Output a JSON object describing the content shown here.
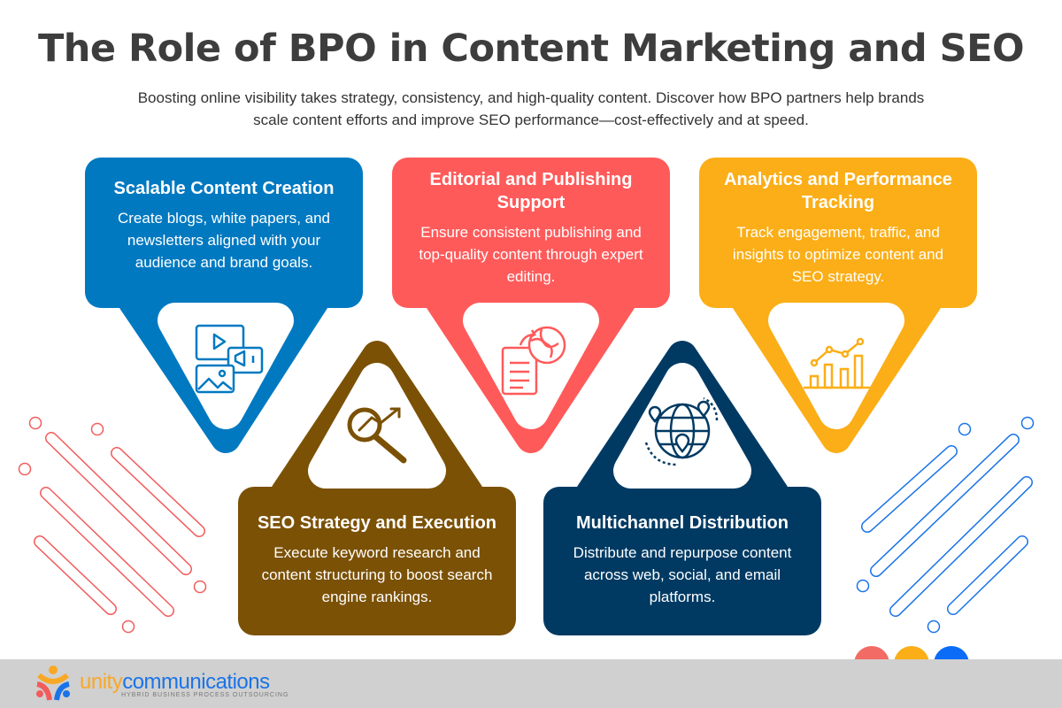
{
  "title": "The Role of BPO in Content Marketing and SEO",
  "subtitle": "Boosting online visibility takes strategy, consistency, and high-quality content. Discover how BPO partners help brands scale content efforts and improve SEO performance—cost-effectively and at speed.",
  "colors": {
    "blue": "#0079C1",
    "red": "#FF5A5A",
    "orange": "#FBAE17",
    "brown": "#7B5105",
    "navy": "#003A63"
  },
  "cards": [
    {
      "title": "Scalable Content Creation",
      "text": "Create blogs, white papers, and newsletters aligned with your audience and brand goals.",
      "icon": "media-content-icon"
    },
    {
      "title": "Editorial and Publishing Support",
      "text": "Ensure consistent publishing and top-quality content through expert editing.",
      "icon": "document-globe-icon"
    },
    {
      "title": "Analytics and Performance Tracking",
      "text": "Track engagement, traffic, and insights to optimize content and SEO strategy.",
      "icon": "bar-chart-icon"
    },
    {
      "title": "SEO Strategy and Execution",
      "text": "Execute keyword research and content structuring to boost search engine rankings.",
      "icon": "magnifier-trend-icon"
    },
    {
      "title": "Multichannel Distribution",
      "text": "Distribute and repurpose content across web, social, and email platforms.",
      "icon": "globe-location-icon"
    }
  ],
  "footer": {
    "logo_part1": "unity",
    "logo_part2": "communications",
    "tagline": "HYBRID BUSINESS PROCESS OUTSOURCING"
  }
}
